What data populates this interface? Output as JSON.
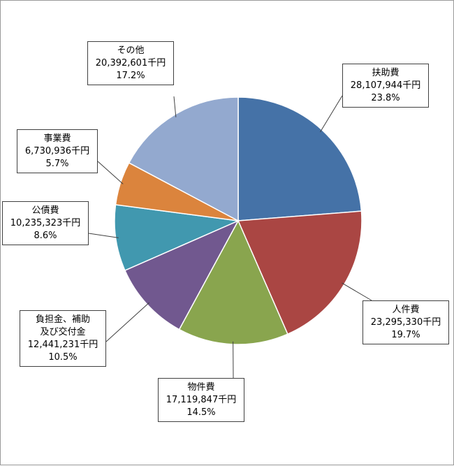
{
  "chart_data": {
    "type": "pie",
    "start": "top, clockwise",
    "slices": [
      {
        "name": "扶助費",
        "value_text": "28,107,944千円",
        "percent_text": "23.8%",
        "value": 28107944,
        "percent": 23.8,
        "color": "#4572a7"
      },
      {
        "name": "人件費",
        "value_text": "23,295,330千円",
        "percent_text": "19.7%",
        "value": 23295330,
        "percent": 19.7,
        "color": "#aa4643"
      },
      {
        "name": "物件費",
        "value_text": "17,119,847千円",
        "percent_text": "14.5%",
        "value": 17119847,
        "percent": 14.5,
        "color": "#89a54e"
      },
      {
        "name": "負担金、補助",
        "name2": "及び交付金",
        "value_text": "12,441,231千円",
        "percent_text": "10.5%",
        "value": 12441231,
        "percent": 10.5,
        "color": "#71588f"
      },
      {
        "name": "公債費",
        "value_text": "10,235,323千円",
        "percent_text": "8.6%",
        "value": 10235323,
        "percent": 8.6,
        "color": "#4198af"
      },
      {
        "name": "事業費",
        "value_text": "6,730,936千円",
        "percent_text": "5.7%",
        "value": 6730936,
        "percent": 5.7,
        "color": "#db843d"
      },
      {
        "name": "その他",
        "value_text": "20,392,601千円",
        "percent_text": "17.2%",
        "value": 20392601,
        "percent": 17.2,
        "color": "#93a9cf"
      }
    ]
  }
}
